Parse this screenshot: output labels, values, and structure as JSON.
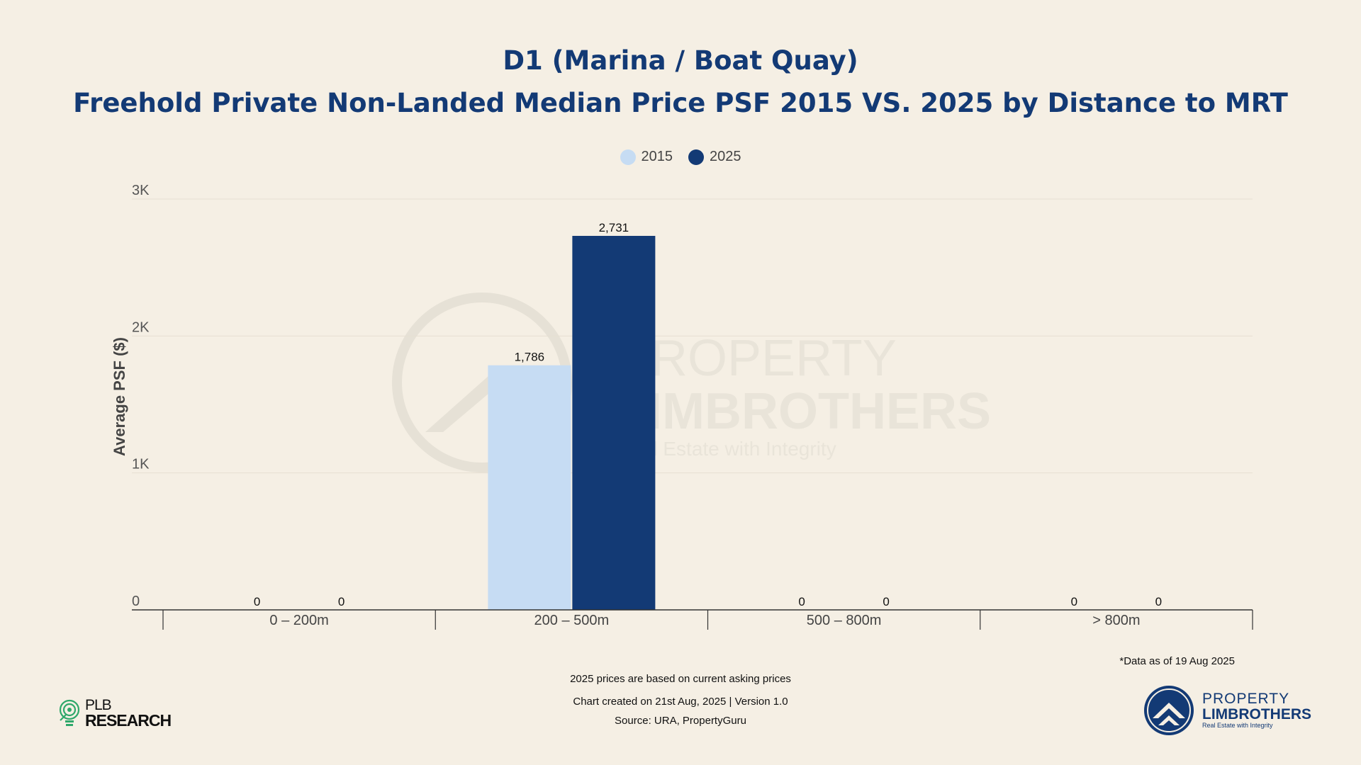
{
  "title": "D1 (Marina / Boat Quay)",
  "subtitle": "Freehold Private Non-Landed Median Price PSF 2015 VS. 2025 by Distance to MRT",
  "colors": {
    "series_2015": "#c6dcf3",
    "series_2025": "#133a75",
    "title": "#133a75",
    "background": "#f5efe4"
  },
  "chart_data": {
    "type": "bar",
    "categories": [
      "0 – 200m",
      "200 – 500m",
      "500 – 800m",
      "> 800m"
    ],
    "series": [
      {
        "name": "2015",
        "values": [
          0,
          1786,
          0,
          0
        ],
        "labels": [
          "0",
          "1,786",
          "0",
          "0"
        ]
      },
      {
        "name": "2025",
        "values": [
          0,
          2731,
          0,
          0
        ],
        "labels": [
          "0",
          "2,731",
          "0",
          "0"
        ]
      }
    ],
    "ylabel": "Average PSF ($)",
    "ylim": [
      0,
      3000
    ],
    "yticks": [
      0,
      1000,
      2000,
      3000
    ],
    "ytick_labels": [
      "0",
      "1K",
      "2K",
      "3K"
    ],
    "grid": true,
    "legend_position": "top-center"
  },
  "watermark": {
    "line1": "PROPERTY",
    "line2": "LIMBROTHERS",
    "tagline": "Real Estate with Integrity"
  },
  "notes": {
    "data_as_of": "*Data as of 19 Aug 2025",
    "asking_prices": "2025 prices are based on current asking prices",
    "created": "Chart created on 21st Aug, 2025 | Version 1.0",
    "source": "Source: URA, PropertyGuru"
  },
  "logos": {
    "plb": {
      "line1": "PLB",
      "line2": "RESEARCH"
    },
    "property_limbrothers": {
      "line1": "PROPERTY",
      "line2": "LIMBROTHERS",
      "tagline": "Real Estate with Integrity"
    }
  }
}
